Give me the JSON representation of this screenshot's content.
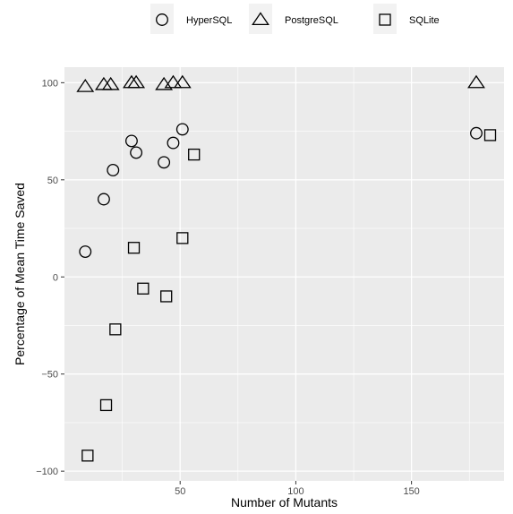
{
  "chart_data": {
    "type": "scatter",
    "title": "",
    "xlabel": "Number of Mutants",
    "ylabel": "Percentage of Mean Time Saved",
    "xlim": [
      0,
      190
    ],
    "ylim": [
      -105,
      108
    ],
    "x_ticks": [
      50,
      100,
      150
    ],
    "y_ticks": [
      -100,
      -50,
      0,
      50,
      100
    ],
    "grid": true,
    "legend_position": "top",
    "series": [
      {
        "name": "HyperSQL",
        "shape": "circle",
        "points": [
          [
            9,
            13
          ],
          [
            17,
            40
          ],
          [
            21,
            55
          ],
          [
            29,
            70
          ],
          [
            31,
            64
          ],
          [
            43,
            59
          ],
          [
            47,
            69
          ],
          [
            51,
            76
          ],
          [
            178,
            74
          ]
        ]
      },
      {
        "name": "PostgreSQL",
        "shape": "triangle",
        "points": [
          [
            9,
            98
          ],
          [
            17,
            99
          ],
          [
            20,
            99
          ],
          [
            29,
            100
          ],
          [
            31,
            100
          ],
          [
            43,
            99
          ],
          [
            47,
            100
          ],
          [
            51,
            100
          ],
          [
            178,
            100
          ]
        ]
      },
      {
        "name": "SQLite",
        "shape": "square",
        "points": [
          [
            10,
            -92
          ],
          [
            18,
            -66
          ],
          [
            22,
            -27
          ],
          [
            30,
            15
          ],
          [
            34,
            -6
          ],
          [
            44,
            -10
          ],
          [
            51,
            20
          ],
          [
            56,
            63
          ],
          [
            184,
            73
          ]
        ]
      }
    ]
  }
}
